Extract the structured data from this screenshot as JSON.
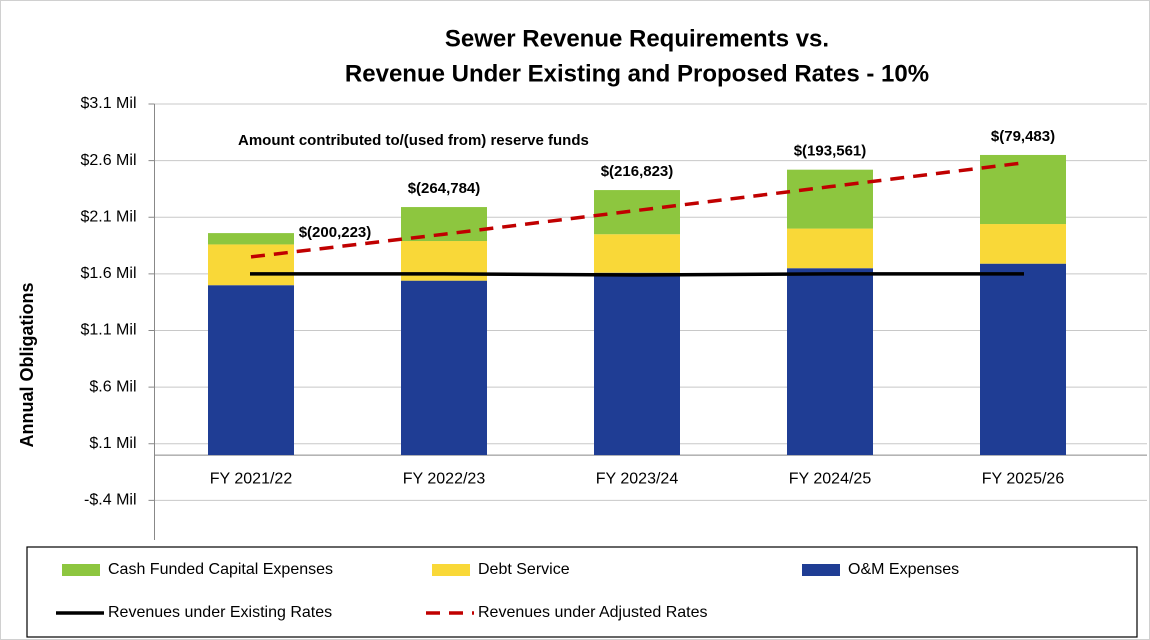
{
  "chart_data": {
    "type": "bar",
    "title": [
      "Sewer Revenue Requirements vs.",
      "Revenue Under Existing and Proposed Rates - 10%"
    ],
    "y_label": "Annual Obligations",
    "annotation": "Amount contributed to/(used from) reserve funds",
    "categories": [
      "FY 2021/22",
      "FY 2022/23",
      "FY 2023/24",
      "FY 2024/25",
      "FY 2025/26"
    ],
    "series": [
      {
        "name": "Cash Funded Capital Expenses",
        "type": "bar",
        "color": "#8dc63f",
        "values": [
          0.1,
          0.3,
          0.39,
          0.52,
          0.61
        ]
      },
      {
        "name": "Debt Service",
        "type": "bar",
        "color": "#f9d838",
        "values": [
          0.36,
          0.35,
          0.34,
          0.35,
          0.35
        ]
      },
      {
        "name": "O&M Expenses",
        "type": "bar",
        "color": "#1f3d94",
        "values": [
          1.5,
          1.54,
          1.61,
          1.65,
          1.69
        ]
      },
      {
        "name": "Revenues under Existing Rates",
        "type": "line",
        "color": "#000000",
        "dashed": false,
        "values": [
          1.6,
          1.6,
          1.59,
          1.6,
          1.6
        ]
      },
      {
        "name": "Revenues under Adjusted Rates",
        "type": "line",
        "color": "#c00000",
        "dashed": true,
        "values": [
          1.75,
          1.95,
          2.16,
          2.37,
          2.58
        ]
      }
    ],
    "reserve_labels": [
      "$(200,223)",
      "$(264,784)",
      "$(216,823)",
      "$(193,561)",
      "$(79,483)"
    ],
    "ylim": [
      -0.75,
      3.1
    ],
    "yticks": [
      {
        "value": -0.4,
        "label": "-$.4 Mil"
      },
      {
        "value": 0.1,
        "label": "$.1 Mil"
      },
      {
        "value": 0.6,
        "label": "$.6 Mil"
      },
      {
        "value": 1.1,
        "label": "$1.1 Mil"
      },
      {
        "value": 1.6,
        "label": "$1.6 Mil"
      },
      {
        "value": 2.1,
        "label": "$2.1 Mil"
      },
      {
        "value": 2.6,
        "label": "$2.6 Mil"
      },
      {
        "value": 3.1,
        "label": "$3.1 Mil"
      }
    ],
    "grid": true
  }
}
